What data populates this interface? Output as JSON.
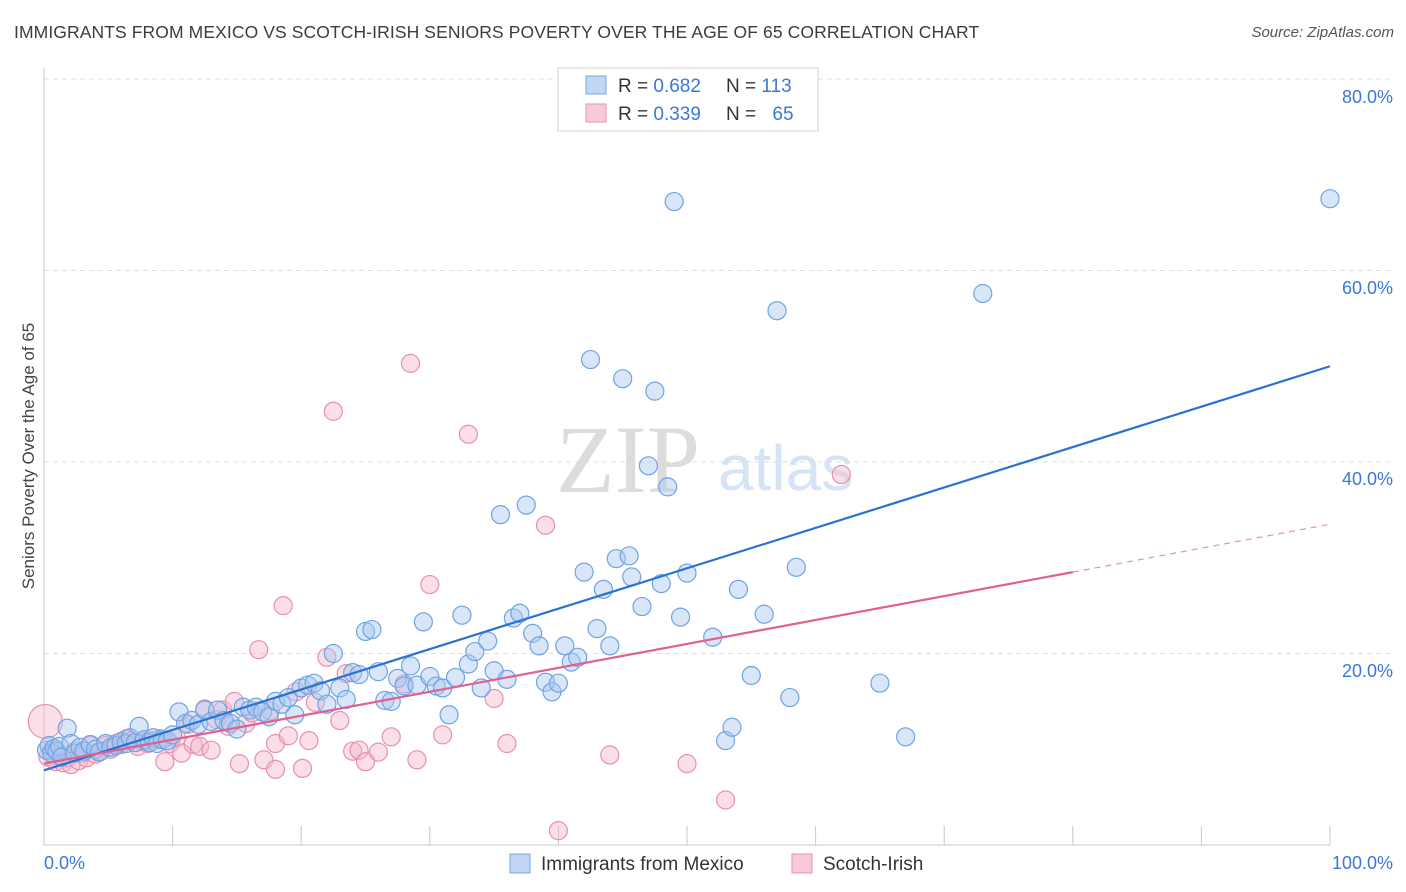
{
  "header": {
    "title": "IMMIGRANTS FROM MEXICO VS SCOTCH-IRISH SENIORS POVERTY OVER THE AGE OF 65 CORRELATION CHART",
    "source": "Source: ZipAtlas.com"
  },
  "watermark": {
    "zip": "ZIP",
    "atlas": "atlas"
  },
  "stats": [
    {
      "r_label": "R = ",
      "r_value": "0.682",
      "n_label": "N = ",
      "n_value": "113",
      "color": "#a9c8f0"
    },
    {
      "r_label": "R = ",
      "r_value": "0.339",
      "n_label": "N = ",
      "n_value": "65",
      "color": "#f5b8cb"
    }
  ],
  "colors": {
    "blue_line": "#2a72d2",
    "pink_line": "#e0608e",
    "blue_fill": "#a9c8f0",
    "pink_fill": "#f5b8cb",
    "value_text": "#3a78d8"
  },
  "chart_data": {
    "type": "scatter",
    "title": "IMMIGRANTS FROM MEXICO VS SCOTCH-IRISH SENIORS POVERTY OVER THE AGE OF 65 CORRELATION CHART",
    "xlabel": "",
    "ylabel": "Seniors Poverty Over the Age of 65",
    "xlim": [
      0,
      100
    ],
    "ylim": [
      0,
      80
    ],
    "x_tick_labels": [
      "0.0%",
      "100.0%"
    ],
    "y_ticks": [
      20,
      40,
      60,
      80
    ],
    "y_tick_labels": [
      "20.0%",
      "40.0%",
      "60.0%",
      "80.0%"
    ],
    "grid": "horizontal-dashed",
    "legend_position": "bottom",
    "series": [
      {
        "name": "Immigrants from Mexico",
        "color": "#a9c8f0",
        "trend": {
          "x": [
            0,
            100
          ],
          "y": [
            7.8,
            50.0
          ],
          "solid_until": 100
        },
        "points": [
          [
            0.2,
            9.9
          ],
          [
            0.4,
            10.4
          ],
          [
            0.6,
            9.6
          ],
          [
            0.8,
            10.1
          ],
          [
            1.0,
            9.8
          ],
          [
            1.2,
            10.3
          ],
          [
            1.4,
            9.2
          ],
          [
            1.8,
            12.2
          ],
          [
            2.1,
            10.6
          ],
          [
            2.4,
            9.6
          ],
          [
            2.8,
            10.2
          ],
          [
            3.1,
            9.8
          ],
          [
            3.6,
            10.5
          ],
          [
            4.0,
            10.0
          ],
          [
            4.3,
            9.7
          ],
          [
            4.8,
            10.6
          ],
          [
            5.2,
            10.2
          ],
          [
            5.6,
            10.4
          ],
          [
            6.0,
            10.8
          ],
          [
            6.4,
            10.6
          ],
          [
            6.7,
            11.2
          ],
          [
            7.1,
            10.7
          ],
          [
            7.4,
            12.4
          ],
          [
            7.8,
            11.0
          ],
          [
            8.2,
            10.7
          ],
          [
            8.5,
            11.2
          ],
          [
            8.8,
            10.6
          ],
          [
            9.2,
            11.0
          ],
          [
            9.6,
            10.9
          ],
          [
            10.0,
            11.5
          ],
          [
            10.5,
            13.9
          ],
          [
            11.0,
            12.7
          ],
          [
            11.5,
            13.0
          ],
          [
            12.0,
            12.6
          ],
          [
            12.5,
            14.1
          ],
          [
            13.0,
            12.9
          ],
          [
            13.5,
            14.1
          ],
          [
            14.0,
            13.0
          ],
          [
            14.5,
            12.7
          ],
          [
            15.0,
            12.1
          ],
          [
            15.5,
            14.4
          ],
          [
            16.0,
            14.1
          ],
          [
            16.5,
            14.4
          ],
          [
            17.0,
            13.9
          ],
          [
            17.5,
            13.4
          ],
          [
            18.0,
            15.0
          ],
          [
            18.5,
            14.7
          ],
          [
            19.0,
            15.4
          ],
          [
            19.5,
            13.6
          ],
          [
            20.0,
            16.4
          ],
          [
            20.5,
            16.7
          ],
          [
            21.0,
            16.9
          ],
          [
            21.5,
            16.1
          ],
          [
            22.0,
            14.7
          ],
          [
            22.5,
            20.0
          ],
          [
            23.0,
            16.4
          ],
          [
            23.5,
            15.2
          ],
          [
            24.0,
            18.0
          ],
          [
            24.5,
            17.8
          ],
          [
            25.0,
            22.3
          ],
          [
            25.5,
            22.5
          ],
          [
            26.0,
            18.1
          ],
          [
            26.5,
            15.1
          ],
          [
            27.0,
            15.0
          ],
          [
            27.5,
            17.4
          ],
          [
            28.0,
            16.6
          ],
          [
            28.5,
            18.7
          ],
          [
            29.0,
            16.7
          ],
          [
            29.5,
            23.3
          ],
          [
            30.0,
            17.6
          ],
          [
            30.5,
            16.6
          ],
          [
            31.0,
            16.4
          ],
          [
            31.5,
            13.6
          ],
          [
            32.0,
            17.5
          ],
          [
            32.5,
            24.0
          ],
          [
            33.0,
            18.9
          ],
          [
            33.5,
            20.2
          ],
          [
            34.0,
            16.4
          ],
          [
            34.5,
            21.3
          ],
          [
            35.0,
            18.2
          ],
          [
            35.5,
            34.5
          ],
          [
            36.0,
            17.3
          ],
          [
            36.5,
            23.7
          ],
          [
            37.0,
            24.2
          ],
          [
            37.5,
            35.5
          ],
          [
            38.0,
            22.1
          ],
          [
            38.5,
            20.8
          ],
          [
            39.0,
            17.0
          ],
          [
            39.5,
            16.0
          ],
          [
            40.0,
            16.9
          ],
          [
            40.5,
            20.8
          ],
          [
            41.0,
            19.1
          ],
          [
            41.5,
            19.6
          ],
          [
            42.0,
            28.5
          ],
          [
            42.5,
            50.7
          ],
          [
            43.0,
            22.6
          ],
          [
            43.5,
            26.7
          ],
          [
            44.0,
            20.8
          ],
          [
            44.5,
            29.9
          ],
          [
            45.0,
            48.7
          ],
          [
            45.5,
            30.2
          ],
          [
            45.7,
            28.0
          ],
          [
            46.5,
            24.9
          ],
          [
            47.0,
            39.6
          ],
          [
            47.5,
            47.4
          ],
          [
            48.0,
            27.3
          ],
          [
            48.5,
            37.4
          ],
          [
            49.0,
            67.2
          ],
          [
            49.5,
            23.8
          ],
          [
            50.0,
            28.4
          ],
          [
            52.0,
            21.7
          ],
          [
            53.0,
            10.9
          ],
          [
            53.5,
            12.3
          ],
          [
            54.0,
            26.7
          ],
          [
            55.0,
            17.7
          ],
          [
            56.0,
            24.1
          ],
          [
            57.0,
            55.8
          ],
          [
            58.0,
            15.4
          ],
          [
            58.5,
            29.0
          ],
          [
            65.0,
            16.9
          ],
          [
            67.0,
            11.3
          ],
          [
            73.0,
            57.6
          ],
          [
            100.0,
            67.5
          ]
        ]
      },
      {
        "name": "Scotch-Irish",
        "color": "#f5b8cb",
        "trend": {
          "x": [
            0,
            100
          ],
          "y": [
            8.5,
            33.5
          ],
          "solid_until": 80
        },
        "points": [
          [
            0.1,
            12.9
          ],
          [
            0.3,
            9.2
          ],
          [
            0.6,
            9.9
          ],
          [
            0.9,
            8.7
          ],
          [
            1.2,
            9.4
          ],
          [
            1.5,
            8.6
          ],
          [
            1.8,
            9.1
          ],
          [
            2.1,
            8.4
          ],
          [
            2.4,
            9.8
          ],
          [
            2.7,
            8.8
          ],
          [
            3.0,
            9.6
          ],
          [
            3.3,
            9.1
          ],
          [
            3.6,
            10.4
          ],
          [
            4.0,
            9.5
          ],
          [
            4.4,
            9.8
          ],
          [
            4.8,
            10.4
          ],
          [
            5.2,
            10.0
          ],
          [
            5.6,
            10.6
          ],
          [
            6.0,
            10.5
          ],
          [
            6.4,
            11.1
          ],
          [
            6.8,
            10.9
          ],
          [
            7.3,
            10.3
          ],
          [
            7.7,
            10.8
          ],
          [
            8.1,
            10.6
          ],
          [
            8.5,
            10.9
          ],
          [
            9.0,
            11.1
          ],
          [
            9.4,
            8.7
          ],
          [
            9.8,
            10.6
          ],
          [
            10.3,
            11.2
          ],
          [
            10.7,
            9.6
          ],
          [
            11.2,
            12.6
          ],
          [
            11.6,
            10.5
          ],
          [
            12.1,
            10.3
          ],
          [
            12.5,
            14.2
          ],
          [
            13.0,
            9.9
          ],
          [
            13.4,
            13.1
          ],
          [
            13.9,
            14.1
          ],
          [
            14.3,
            12.4
          ],
          [
            14.8,
            15.0
          ],
          [
            15.2,
            8.5
          ],
          [
            15.7,
            12.7
          ],
          [
            16.2,
            13.8
          ],
          [
            16.7,
            20.4
          ],
          [
            17.1,
            8.9
          ],
          [
            17.6,
            14.0
          ],
          [
            18.0,
            10.6
          ],
          [
            18.6,
            25.0
          ],
          [
            19.0,
            11.4
          ],
          [
            19.6,
            16.0
          ],
          [
            20.1,
            8.0
          ],
          [
            20.6,
            10.9
          ],
          [
            21.1,
            14.9
          ],
          [
            22.0,
            19.6
          ],
          [
            22.5,
            45.3
          ],
          [
            23.0,
            13.0
          ],
          [
            23.5,
            17.9
          ],
          [
            24.0,
            9.8
          ],
          [
            24.5,
            9.9
          ],
          [
            25.0,
            8.7
          ],
          [
            26.0,
            9.7
          ],
          [
            27.0,
            11.3
          ],
          [
            28.0,
            16.8
          ],
          [
            28.5,
            50.3
          ],
          [
            29.0,
            8.9
          ],
          [
            30.0,
            27.2
          ],
          [
            31.0,
            11.5
          ],
          [
            33.0,
            42.9
          ],
          [
            35.0,
            15.3
          ],
          [
            36.0,
            10.6
          ],
          [
            39.0,
            33.4
          ],
          [
            40.0,
            1.5
          ],
          [
            44.0,
            9.4
          ],
          [
            50.0,
            8.5
          ],
          [
            53.0,
            4.7
          ],
          [
            62.0,
            38.7
          ],
          [
            18.0,
            7.9
          ]
        ]
      }
    ]
  },
  "legend": {
    "items": [
      {
        "label": "Immigrants from Mexico",
        "color": "#a9c8f0"
      },
      {
        "label": "Scotch-Irish",
        "color": "#f5b8cb"
      }
    ]
  }
}
